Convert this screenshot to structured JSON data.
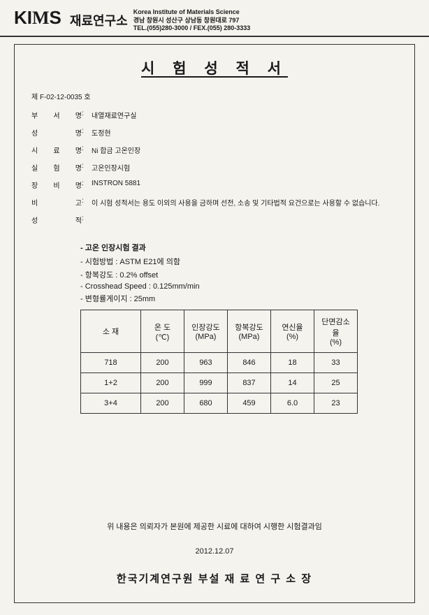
{
  "header": {
    "logo_pre": "KI",
    "logo_accent": "M",
    "logo_post": "S",
    "institute_kr": "재료연구소",
    "en_name": "Korea Institute of Materials Science",
    "address": "경남 창원시 성산구 상남동 창원대로 797",
    "tel": "TEL.(055)280-3000 / FEX.(055) 280-3333"
  },
  "doc": {
    "title": "시 험 성 적 서",
    "number": "제 F-02-12-0035 호"
  },
  "meta": [
    {
      "label_chars": [
        "부",
        "서",
        "명"
      ],
      "value": "내열재료연구실"
    },
    {
      "label_chars": [
        "성",
        "",
        "명"
      ],
      "value": "도정현"
    },
    {
      "label_chars": [
        "시",
        "료",
        "명"
      ],
      "value": "Ni 합금 고온인장"
    },
    {
      "label_chars": [
        "실",
        "험",
        "명"
      ],
      "value": "고온인장시험"
    },
    {
      "label_chars": [
        "장",
        "비",
        "명"
      ],
      "value": "INSTRON 5881"
    },
    {
      "label_chars": [
        "비",
        "",
        "고"
      ],
      "value": "이 시험 성적서는 용도 이외의 사용을 금하며 선전, 소송 및 기타법적 요건으로는 사용할 수 없습니다."
    },
    {
      "label_chars": [
        "성",
        "",
        "적"
      ],
      "value": ""
    }
  ],
  "results": {
    "heading": "- 고온 인장시험 결과",
    "lines": [
      "- 시험방법 : ASTM E21에 의함",
      "- 항복강도 : 0.2% offset",
      "- Crosshead Speed : 0.125mm/min",
      "- 변형률게이지 : 25mm"
    ]
  },
  "table": {
    "columns": [
      {
        "h1": "소 재",
        "h2": "",
        "class": "col-material"
      },
      {
        "h1": "온 도",
        "h2": "(℃)",
        "class": "col-num"
      },
      {
        "h1": "인장강도",
        "h2": "(MPa)",
        "class": "col-num"
      },
      {
        "h1": "항복강도",
        "h2": "(MPa)",
        "class": "col-num"
      },
      {
        "h1": "연신율",
        "h2": "(%)",
        "class": "col-num"
      },
      {
        "h1": "단면감소율",
        "h2": "(%)",
        "class": "col-num"
      }
    ],
    "rows": [
      [
        "718",
        "200",
        "963",
        "846",
        "18",
        "33"
      ],
      [
        "1+2",
        "200",
        "999",
        "837",
        "14",
        "25"
      ],
      [
        "3+4",
        "200",
        "680",
        "459",
        "6.0",
        "23"
      ]
    ]
  },
  "footer": {
    "note": "위 내용은 의뢰자가 본원에 제공한 시료에 대하여 시행한 시험결과임",
    "date": "2012.12.07",
    "org": "한국기계연구원 부설 재 료 연 구 소 장"
  }
}
